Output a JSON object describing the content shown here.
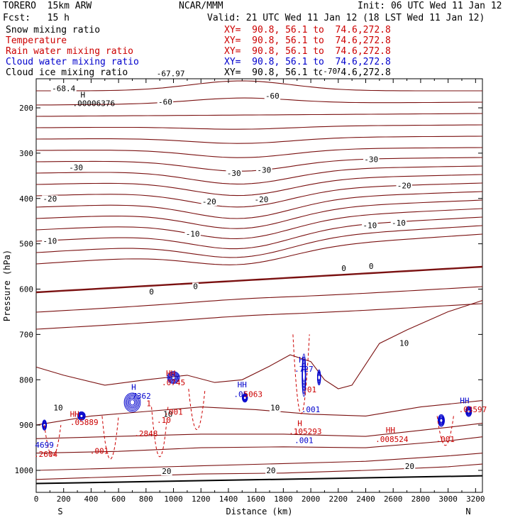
{
  "header": {
    "model": "TORERO  15km ARW",
    "org": "NCAR/MMM",
    "init": "Init: 06 UTC Wed 11 Jan 12",
    "fcst": "Fcst:   15 h",
    "valid": "Valid: 21 UTC Wed 11 Jan 12 (18 LST Wed 11 Jan 12)"
  },
  "legend": [
    {
      "label": "Snow mixing ratio",
      "color": "#000000",
      "xy": "XY=  90.8, 56.1 to  74.6,272.8"
    },
    {
      "label": "Temperature",
      "color": "#cc0000",
      "xy": "XY=  90.8, 56.1 to  74.6,272.8"
    },
    {
      "label": "Rain water mixing ratio",
      "color": "#cc0000",
      "xy": "XY=  90.8, 56.1 to  74.6,272.8"
    },
    {
      "label": "Cloud water mixing ratio",
      "color": "#0000cc",
      "xy": "XY=  90.8, 56.1 to  74.6,272.8"
    },
    {
      "label": "Cloud ice mixing ratio",
      "color": "#000000",
      "xy": "XY=  90.8, 56.1 to  74.6,272.8"
    }
  ],
  "colors": {
    "temperature": "#7a1010",
    "rain": "#cc0000",
    "cloud_water": "#0000cc",
    "ground": "#000000"
  },
  "chart_data": {
    "type": "line",
    "xlabel": "Distance (km)",
    "ylabel": "Pressure (hPa)",
    "xlim": [
      0,
      3250
    ],
    "ylim": [
      1045,
      100
    ],
    "x_ticks": [
      0,
      100,
      200,
      300,
      400,
      500,
      600,
      700,
      800,
      900,
      1000,
      1100,
      1200,
      1300,
      1400,
      1500,
      1600,
      1700,
      1800,
      1900,
      2000,
      2100,
      2200,
      2300,
      2400,
      2500,
      2600,
      2700,
      2800,
      2900,
      3000,
      3100,
      3200
    ],
    "x_tick_labels": [
      "0",
      "200",
      "400",
      "600",
      "800",
      "1000",
      "1200",
      "1400",
      "1600",
      "1800",
      "2000",
      "2200",
      "2400",
      "2600",
      "2800",
      "3000",
      "3200"
    ],
    "y_ticks": [
      200,
      300,
      400,
      500,
      600,
      700,
      800,
      900,
      1000
    ],
    "y_tick_labels": [
      "200",
      "300",
      "400",
      "500",
      "600",
      "700",
      "800",
      "900",
      "1000"
    ],
    "end_labels": {
      "left": "S",
      "right": "N"
    },
    "temperature_labels": [
      {
        "text": "-67.97",
        "x": 980,
        "p": 130
      },
      {
        "text": "-70",
        "x": 2140,
        "p": 125
      },
      {
        "text": "-68.4",
        "x": 200,
        "p": 163
      },
      {
        "text": "-60",
        "x": 940,
        "p": 193
      },
      {
        "text": "-60",
        "x": 1720,
        "p": 180
      },
      {
        "text": "-30",
        "x": 290,
        "p": 338
      },
      {
        "text": "-30",
        "x": 1440,
        "p": 350
      },
      {
        "text": "-30",
        "x": 1660,
        "p": 343
      },
      {
        "text": "-30",
        "x": 2440,
        "p": 320
      },
      {
        "text": "-20",
        "x": 100,
        "p": 407
      },
      {
        "text": "-20",
        "x": 1260,
        "p": 413
      },
      {
        "text": "-20",
        "x": 1640,
        "p": 408
      },
      {
        "text": "-20",
        "x": 2680,
        "p": 378
      },
      {
        "text": "-10",
        "x": 100,
        "p": 500
      },
      {
        "text": "-10",
        "x": 1140,
        "p": 484
      },
      {
        "text": "-10",
        "x": 2430,
        "p": 465
      },
      {
        "text": "-10",
        "x": 2640,
        "p": 460
      },
      {
        "text": "0",
        "x": 840,
        "p": 612
      },
      {
        "text": "0",
        "x": 1160,
        "p": 600
      },
      {
        "text": "0",
        "x": 2240,
        "p": 560
      },
      {
        "text": "0",
        "x": 2440,
        "p": 555
      },
      {
        "text": "10",
        "x": 2680,
        "p": 725
      },
      {
        "text": "10",
        "x": 160,
        "p": 868
      },
      {
        "text": "10",
        "x": 960,
        "p": 882
      },
      {
        "text": "10",
        "x": 1740,
        "p": 868
      },
      {
        "text": "20",
        "x": 950,
        "p": 1008
      },
      {
        "text": "20",
        "x": 1710,
        "p": 1006
      },
      {
        "text": "20",
        "x": 2720,
        "p": 997
      }
    ],
    "extrema_labels": [
      {
        "text": "H",
        "x": 340,
        "p": 177,
        "color": "#000000"
      },
      {
        "text": ".00006376",
        "x": 420,
        "p": 196,
        "color": "#000000"
      },
      {
        "text": "H",
        "x": 710,
        "p": 822,
        "color": "#0000cc"
      },
      {
        "text": ".7362",
        "x": 750,
        "p": 842,
        "color": "#0000cc"
      },
      {
        "text": "HH",
        "x": 980,
        "p": 792,
        "color": "#cc0000"
      },
      {
        "text": ".0745",
        "x": 1000,
        "p": 812,
        "color": "#cc0000"
      },
      {
        "text": "HH",
        "x": 1500,
        "p": 817,
        "color": "#0000cc"
      },
      {
        "text": ".05",
        "x": 1490,
        "p": 838,
        "color": "#0000cc"
      },
      {
        "text": "5063",
        "x": 1580,
        "p": 838,
        "color": "#cc0000"
      },
      {
        "text": "H",
        "x": 1930,
        "p": 762,
        "color": "#0000cc"
      },
      {
        "text": ".727",
        "x": 1950,
        "p": 782,
        "color": "#0000cc"
      },
      {
        "text": ".01",
        "x": 1990,
        "p": 828,
        "color": "#cc0000"
      },
      {
        "text": ".001",
        "x": 2000,
        "p": 872,
        "color": "#0000cc"
      },
      {
        "text": "H",
        "x": 1920,
        "p": 902,
        "color": "#cc0000"
      },
      {
        "text": ".105293",
        "x": 1960,
        "p": 920,
        "color": "#cc0000"
      },
      {
        "text": ".001",
        "x": 1950,
        "p": 940,
        "color": "#0000cc"
      },
      {
        "text": "HH",
        "x": 2580,
        "p": 917,
        "color": "#cc0000"
      },
      {
        "text": ".008524",
        "x": 2590,
        "p": 937,
        "color": "#cc0000"
      },
      {
        "text": ".001",
        "x": 2980,
        "p": 937,
        "color": "#cc0000"
      },
      {
        "text": "HH",
        "x": 3120,
        "p": 852,
        "color": "#0000cc"
      },
      {
        "text": ".03597",
        "x": 3180,
        "p": 872,
        "color": "#cc0000"
      },
      {
        "text": "HH",
        "x": 280,
        "p": 882,
        "color": "#cc0000"
      },
      {
        "text": ".05889",
        "x": 350,
        "p": 900,
        "color": "#cc0000"
      },
      {
        "text": "4699",
        "x": 60,
        "p": 950,
        "color": "#0000cc"
      },
      {
        "text": ".2604",
        "x": 70,
        "p": 970,
        "color": "#cc0000"
      },
      {
        "text": ".001",
        "x": 460,
        "p": 963,
        "color": "#cc0000"
      },
      {
        "text": ".001",
        "x": 1000,
        "p": 877,
        "color": "#cc0000"
      },
      {
        "text": "1",
        "x": 820,
        "p": 858,
        "color": "#cc0000"
      },
      {
        "text": ".10",
        "x": 930,
        "p": 895,
        "color": "#cc0000"
      },
      {
        "text": ".2848",
        "x": 800,
        "p": 925,
        "color": "#cc0000"
      }
    ]
  }
}
